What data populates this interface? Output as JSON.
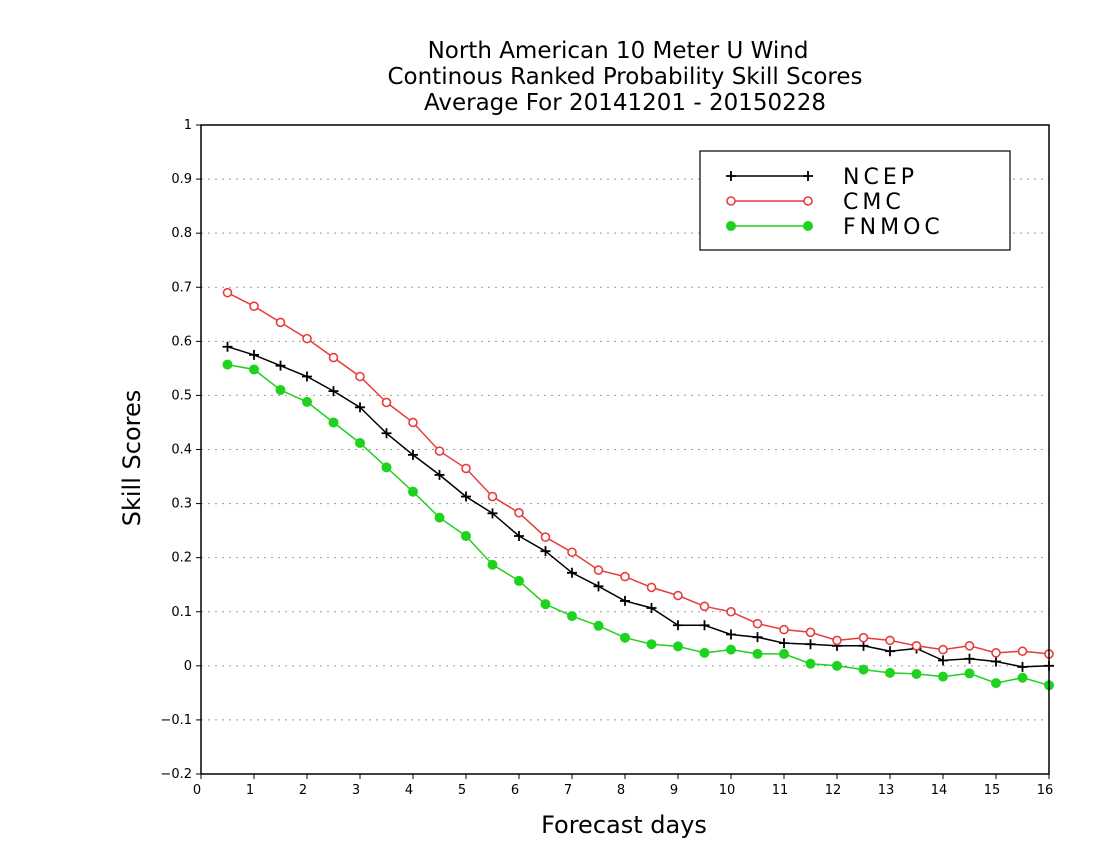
{
  "chart_data": {
    "type": "line",
    "title": [
      "North American 10 Meter U Wind",
      "Continous Ranked Probability Skill Scores",
      "Average For 20141201 - 20150228"
    ],
    "xlabel": "Forecast days",
    "ylabel": "Skill Scores",
    "xlim": [
      0,
      16
    ],
    "ylim": [
      -0.2,
      1
    ],
    "xticks": [
      "0",
      "1",
      "2",
      "3",
      "4",
      "5",
      "6",
      "7",
      "8",
      "9",
      "10",
      "11",
      "12",
      "13",
      "14",
      "15",
      "16"
    ],
    "yticks": [
      "−0.2",
      "−0.1",
      "0",
      "0.1",
      "0.2",
      "0.3",
      "0.4",
      "0.5",
      "0.6",
      "0.7",
      "0.8",
      "0.9",
      "1"
    ],
    "grid": "horizontal dotted",
    "legend_position": "top-right",
    "x": [
      0.5,
      1,
      1.5,
      2,
      2.5,
      3,
      3.5,
      4,
      4.5,
      5,
      5.5,
      6,
      6.5,
      7,
      7.5,
      8,
      8.5,
      9,
      9.5,
      10,
      10.5,
      11,
      11.5,
      12,
      12.5,
      13,
      13.5,
      14,
      14.5,
      15,
      15.5,
      16
    ],
    "series": [
      {
        "name": "NCEP",
        "color": "#000000",
        "marker": "plus",
        "values": [
          0.59,
          0.575,
          0.555,
          0.535,
          0.508,
          0.478,
          0.43,
          0.39,
          0.353,
          0.313,
          0.282,
          0.24,
          0.212,
          0.172,
          0.147,
          0.12,
          0.107,
          0.075,
          0.075,
          0.058,
          0.053,
          0.042,
          0.04,
          0.037,
          0.037,
          0.027,
          0.032,
          0.01,
          0.013,
          0.008,
          -0.002,
          0.0
        ]
      },
      {
        "name": "CMC",
        "color": "#e83c3c",
        "marker": "open-circle",
        "values": [
          0.69,
          0.665,
          0.635,
          0.605,
          0.57,
          0.535,
          0.487,
          0.45,
          0.397,
          0.365,
          0.313,
          0.283,
          0.238,
          0.21,
          0.177,
          0.165,
          0.145,
          0.13,
          0.11,
          0.1,
          0.078,
          0.067,
          0.062,
          0.047,
          0.052,
          0.047,
          0.037,
          0.03,
          0.037,
          0.024,
          0.027,
          0.022
        ]
      },
      {
        "name": "FNMOC",
        "color": "#1fd21f",
        "marker": "filled-circle",
        "values": [
          0.557,
          0.548,
          0.51,
          0.488,
          0.45,
          0.412,
          0.367,
          0.322,
          0.274,
          0.24,
          0.187,
          0.157,
          0.114,
          0.092,
          0.074,
          0.052,
          0.04,
          0.036,
          0.024,
          0.03,
          0.022,
          0.022,
          0.004,
          0.0,
          -0.007,
          -0.013,
          -0.015,
          -0.02,
          -0.014,
          -0.032,
          -0.022,
          -0.036
        ]
      }
    ]
  }
}
